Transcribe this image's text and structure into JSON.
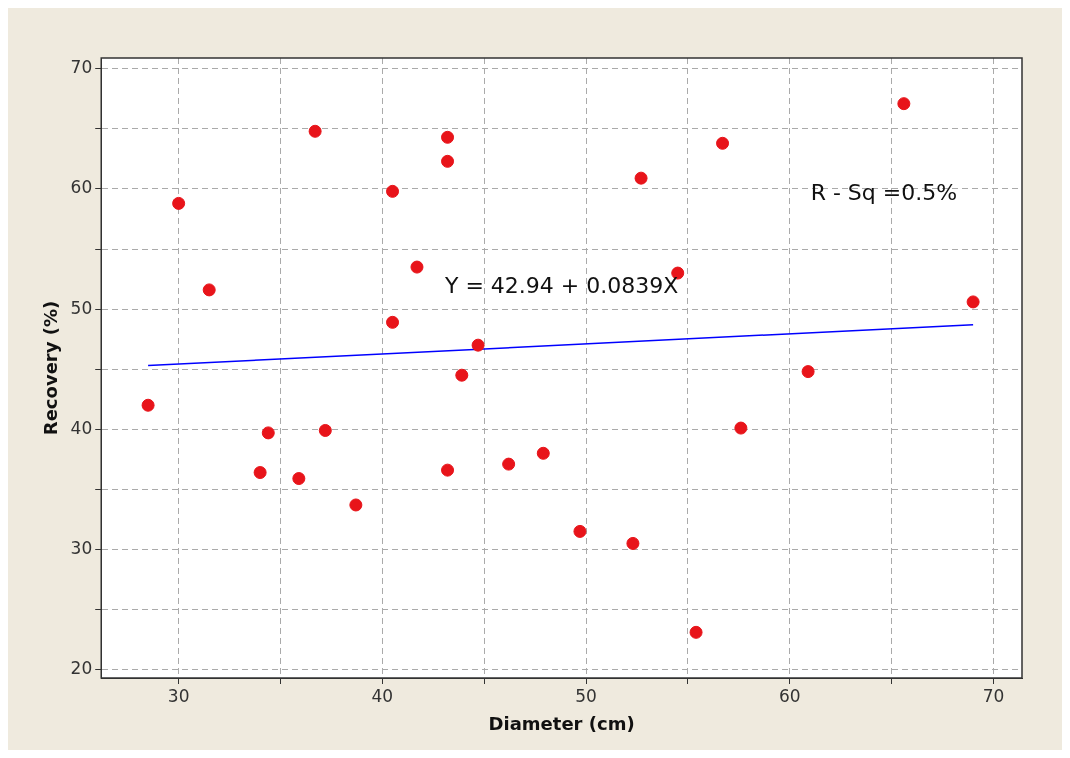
{
  "chart_data": {
    "type": "scatter",
    "xlabel": "Diameter (cm)",
    "ylabel": "Recovery (%)",
    "xlim": [
      26.2,
      71.4
    ],
    "ylim": [
      19.3,
      70.9
    ],
    "xticks": [
      30,
      {
        "value": 35,
        "label": null
      },
      40,
      {
        "value": 45,
        "label": null
      },
      50,
      {
        "value": 55,
        "label": null
      },
      60,
      {
        "value": 65,
        "label": null
      },
      70
    ],
    "yticks": [
      20,
      {
        "value": 25,
        "label": null
      },
      30,
      {
        "value": 35,
        "label": null
      },
      40,
      {
        "value": 45,
        "label": null
      },
      50,
      {
        "value": 55,
        "label": null
      },
      60,
      {
        "value": 65,
        "label": null
      },
      70
    ],
    "grid": true,
    "legend": false,
    "marker": "circle",
    "annotations": [
      "Y = 42.94 + 0.0839X",
      "R - Sq =0.5%"
    ],
    "series": [
      {
        "type": "scatter",
        "color": "#e8141a",
        "x": [
          28.5,
          30.0,
          31.5,
          34.0,
          34.4,
          35.9,
          36.7,
          37.2,
          38.7,
          40.5,
          40.5,
          41.7,
          43.2,
          43.2,
          43.2,
          43.9,
          44.7,
          46.2,
          47.9,
          49.7,
          52.3,
          52.7,
          54.5,
          55.4,
          56.7,
          57.6,
          60.9,
          65.6,
          69.0
        ],
        "values": [
          42.0,
          58.8,
          51.6,
          36.4,
          39.7,
          35.9,
          64.8,
          39.9,
          33.7,
          59.8,
          48.9,
          53.5,
          64.3,
          62.3,
          36.6,
          44.5,
          47.0,
          37.1,
          38.0,
          31.5,
          30.5,
          60.9,
          53.0,
          23.1,
          63.8,
          40.1,
          44.8,
          67.1,
          50.6
        ]
      },
      {
        "type": "line",
        "color": "#0000ff",
        "line_style": "solid",
        "marker": "none",
        "x": [
          28.5,
          69.0
        ],
        "values": [
          45.3,
          48.7
        ]
      }
    ]
  }
}
